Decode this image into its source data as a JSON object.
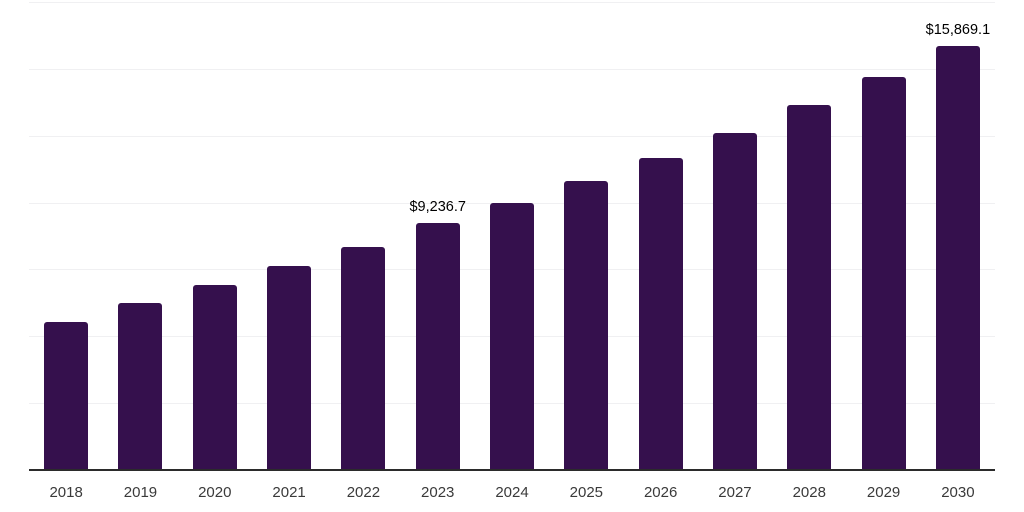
{
  "chart_data": {
    "type": "bar",
    "title": "",
    "xlabel": "",
    "ylabel": "",
    "categories": [
      "2018",
      "2019",
      "2020",
      "2021",
      "2022",
      "2023",
      "2024",
      "2025",
      "2026",
      "2027",
      "2028",
      "2029",
      "2030"
    ],
    "values": [
      5540,
      6230,
      6920,
      7630,
      8340,
      9236.7,
      9980,
      10790,
      11650,
      12590,
      13650,
      14700,
      15869.1
    ],
    "data_labels": [
      "",
      "",
      "",
      "",
      "",
      "$9,236.7",
      "",
      "",
      "",
      "",
      "",
      "",
      "$15,869.1"
    ],
    "ylim": [
      0,
      17500
    ],
    "grid_step": 2500,
    "grid": "horizontal-only",
    "legend_position": "none",
    "y_axis_tick_labels_visible": false,
    "bar_color": "#35104D",
    "gridline_color": "#f0f0f2",
    "axis_line_color": "#2b2b2b",
    "x_label_color": "#3a3a3a",
    "value_label_color": "#000000"
  }
}
